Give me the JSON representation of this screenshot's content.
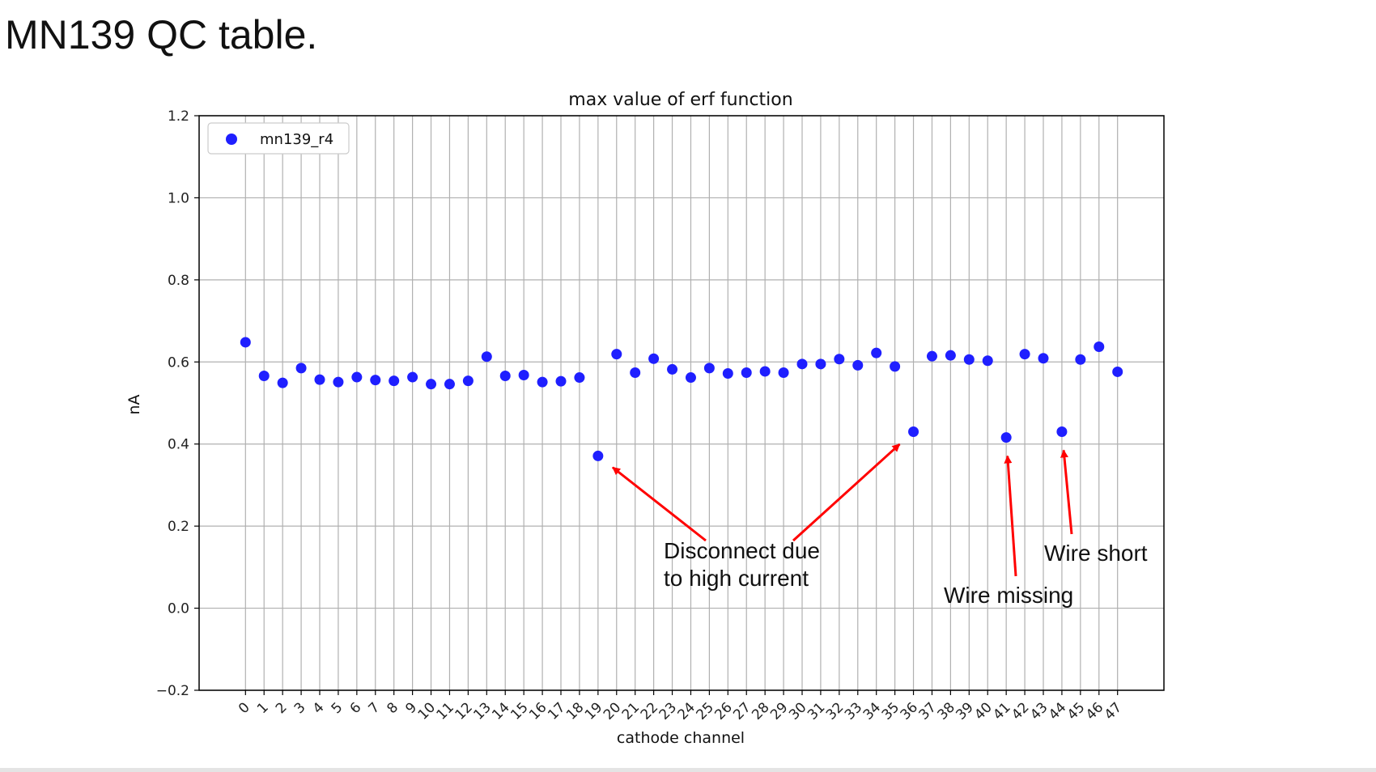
{
  "slide": {
    "title": "MN139 QC table."
  },
  "chart_data": {
    "type": "scatter",
    "title": "max value of erf function",
    "xlabel": "cathode channel",
    "ylabel": "nA",
    "ylim": [
      -0.2,
      1.2
    ],
    "xlim": [
      -2.5,
      49.5
    ],
    "yticks": [
      -0.2,
      0.0,
      0.2,
      0.4,
      0.6,
      0.8,
      1.0,
      1.2
    ],
    "ytick_labels": [
      "−0.2",
      "0.0",
      "0.2",
      "0.4",
      "0.6",
      "0.8",
      "1.0",
      "1.2"
    ],
    "grid": true,
    "legend_placement": "top-left",
    "marker_color": "#1f1fff",
    "series": [
      {
        "name": "mn139_r4",
        "x": [
          0,
          1,
          2,
          3,
          4,
          5,
          6,
          7,
          8,
          9,
          10,
          11,
          12,
          13,
          14,
          15,
          16,
          17,
          18,
          19,
          20,
          21,
          22,
          23,
          24,
          25,
          26,
          27,
          28,
          29,
          30,
          31,
          32,
          33,
          34,
          35,
          36,
          37,
          38,
          39,
          40,
          41,
          42,
          43,
          44,
          45,
          46,
          47
        ],
        "y": [
          0.648,
          0.566,
          0.549,
          0.585,
          0.557,
          0.551,
          0.563,
          0.556,
          0.554,
          0.563,
          0.546,
          0.546,
          0.554,
          0.613,
          0.566,
          0.568,
          0.551,
          0.553,
          0.562,
          0.371,
          0.619,
          0.574,
          0.608,
          0.582,
          0.562,
          0.585,
          0.572,
          0.574,
          0.577,
          0.574,
          0.595,
          0.595,
          0.607,
          0.592,
          0.622,
          0.589,
          0.43,
          0.614,
          0.616,
          0.606,
          0.603,
          0.416,
          0.619,
          0.609,
          0.43,
          0.606,
          0.637,
          0.576
        ]
      }
    ],
    "annotations": [
      {
        "lines": [
          "Disconnect due",
          "to high current"
        ],
        "targets": [
          19,
          36
        ],
        "color": "#ff0000"
      },
      {
        "lines": [
          "Wire missing"
        ],
        "targets": [
          41
        ],
        "color": "#ff0000"
      },
      {
        "lines": [
          "Wire short"
        ],
        "targets": [
          44
        ],
        "color": "#ff0000"
      }
    ]
  }
}
